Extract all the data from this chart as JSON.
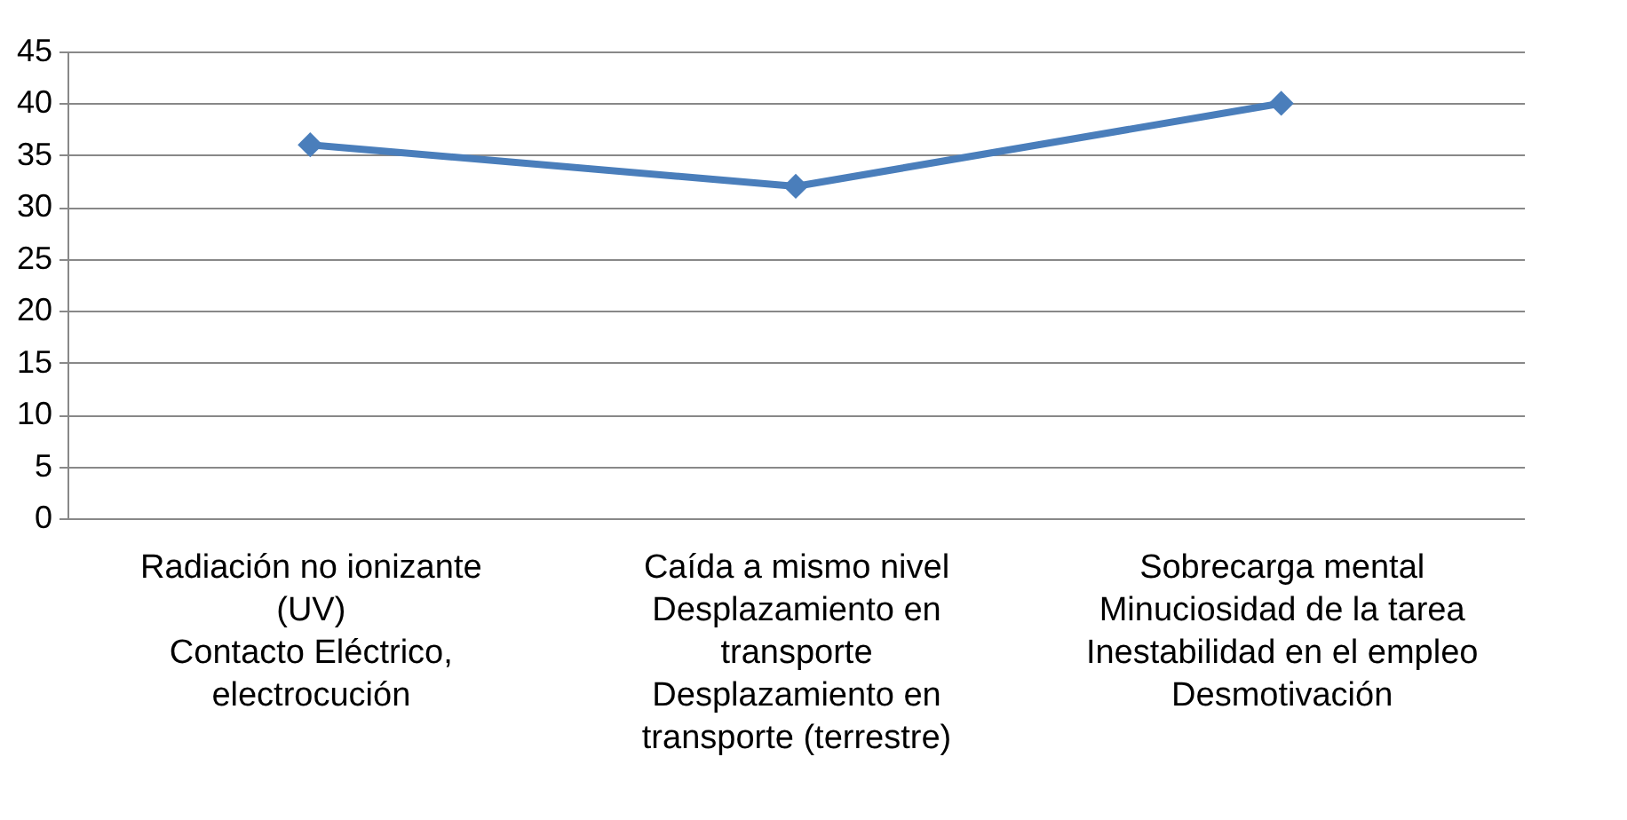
{
  "chart_data": {
    "type": "line",
    "categories": [
      "Radiación no ionizante\n(UV)\nContacto Eléctrico,\nelectrocución",
      "Caída a mismo nivel\nDesplazamiento en\ntransporte\nDesplazamiento en\ntransporte (terrestre)",
      "Sobrecarga mental\nMinuciosidad de la tarea\nInestabilidad en el empleo\nDesmotivación"
    ],
    "series": [
      {
        "color": "#4a7ebb",
        "values": [
          36,
          32,
          40
        ]
      }
    ],
    "ylim": [
      0,
      45
    ],
    "yticks": [
      0,
      5,
      10,
      15,
      20,
      25,
      30,
      35,
      40,
      45
    ],
    "grid": "y",
    "marker": "diamond",
    "line_style": "solid",
    "legend": false
  }
}
